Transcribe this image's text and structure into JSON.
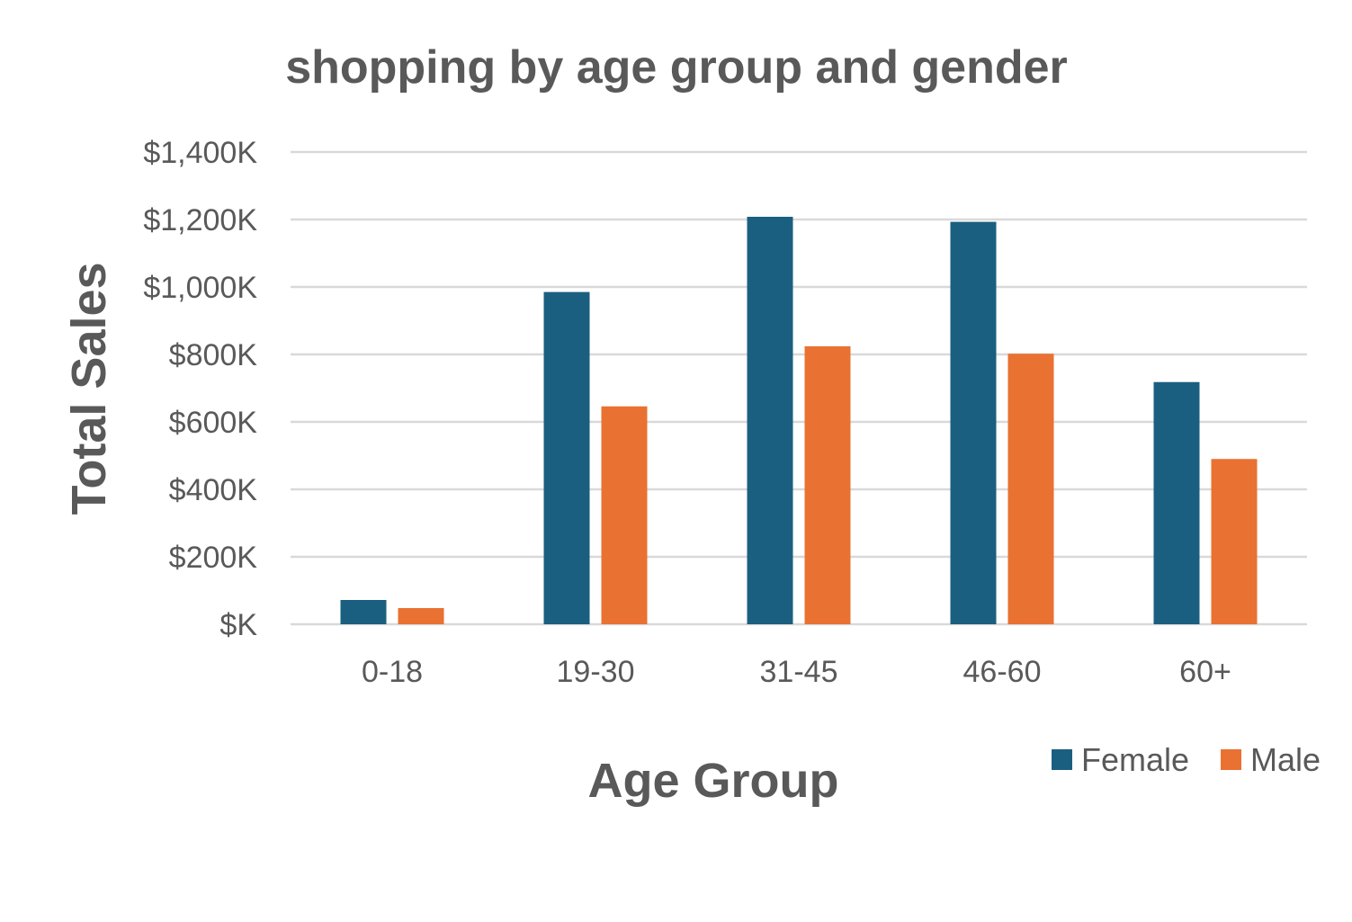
{
  "chart_data": {
    "type": "bar",
    "title": "shopping  by age group and gender",
    "xlabel": "Age Group",
    "ylabel": "Total Sales",
    "categories": [
      "0-18",
      "19-30",
      "31-45",
      "46-60",
      "60+"
    ],
    "series": [
      {
        "name": "Female",
        "color": "#1a5f80",
        "values": [
          72,
          985,
          1208,
          1193,
          718
        ]
      },
      {
        "name": "Male",
        "color": "#e97132",
        "values": [
          48,
          646,
          824,
          802,
          490
        ]
      }
    ],
    "ylim": [
      0,
      1400
    ],
    "yticks": [
      0,
      200,
      400,
      600,
      800,
      1000,
      1200,
      1400
    ],
    "ytick_labels": [
      "$K",
      "$200K",
      "$400K",
      "$600K",
      "$800K",
      "$1,000K",
      "$1,200K",
      "$1,400K"
    ],
    "grid": true,
    "legend": "bottom-right"
  }
}
